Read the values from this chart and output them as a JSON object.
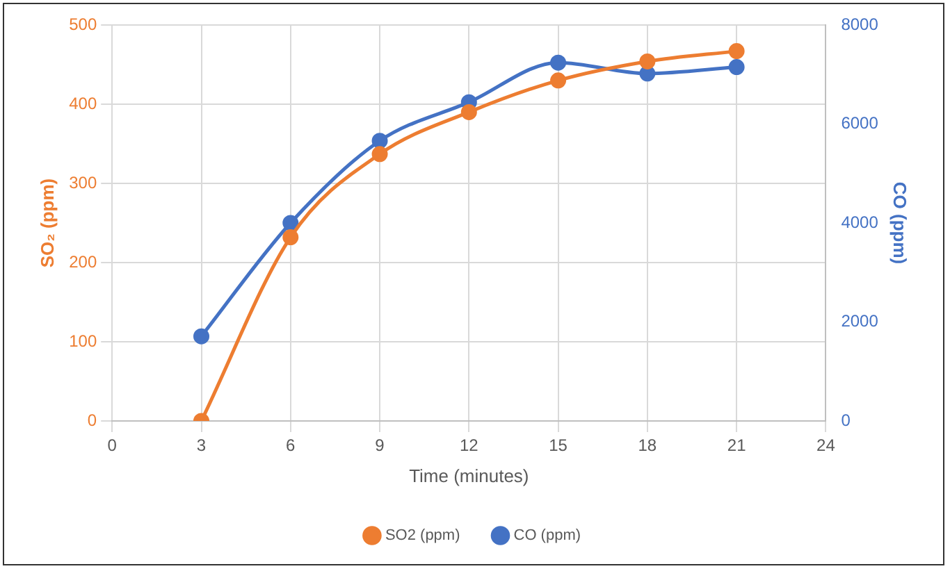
{
  "chart_data": {
    "type": "line",
    "xlabel": "Time (minutes)",
    "ylabel": "SO₂ (ppm)",
    "y2label": "CO (ppm)",
    "x": [
      3,
      6,
      9,
      12,
      15,
      18,
      21
    ],
    "series": [
      {
        "name": "SO2 (ppm)",
        "color": "#ed7d31",
        "values": [
          0,
          232,
          337,
          390,
          430,
          454,
          467
        ]
      },
      {
        "name": "CO (ppm)",
        "color": "#4472c4",
        "axis": "y2",
        "values": [
          1710,
          4000,
          5660,
          6440,
          7240,
          7020,
          7150
        ]
      }
    ],
    "xlim": [
      0,
      24
    ],
    "xticks": [
      0,
      3,
      6,
      9,
      12,
      15,
      18,
      21,
      24
    ],
    "ylim": [
      0,
      500
    ],
    "yticks": [
      0,
      100,
      200,
      300,
      400,
      500
    ],
    "y2lim": [
      0,
      8000
    ],
    "y2ticks": [
      0,
      2000,
      4000,
      6000,
      8000
    ],
    "grid": true,
    "legend": "bottom",
    "marker": "circle",
    "line_style": "solid"
  }
}
